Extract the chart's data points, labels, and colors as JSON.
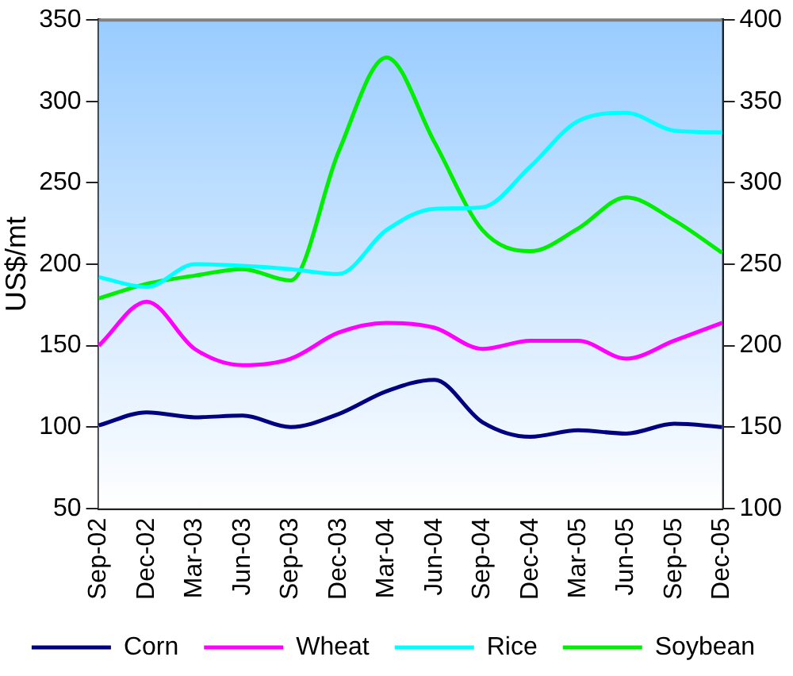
{
  "chart_data": {
    "type": "line",
    "ylabel": "US$/mt",
    "categories": [
      "Sep-02",
      "Dec-02",
      "Mar-03",
      "Jun-03",
      "Sep-03",
      "Dec-03",
      "Mar-04",
      "Jun-04",
      "Sep-04",
      "Dec-04",
      "Mar-05",
      "Jun-05",
      "Sep-05",
      "Dec-05"
    ],
    "series": [
      {
        "name": "Corn",
        "color": "#000080",
        "values": [
          101,
          109,
          106,
          107,
          100,
          108,
          122,
          129,
          103,
          94,
          98,
          96,
          102,
          100
        ]
      },
      {
        "name": "Wheat",
        "color": "#ff00ff",
        "values": [
          150,
          177,
          148,
          138,
          142,
          158,
          164,
          161,
          148,
          153,
          153,
          142,
          153,
          164
        ]
      },
      {
        "name": "Rice",
        "color": "#00ffff",
        "values": [
          192,
          186,
          200,
          199,
          197,
          194,
          221,
          234,
          235,
          260,
          288,
          293,
          282,
          281
        ]
      },
      {
        "name": "Soybean",
        "color": "#00ee00",
        "axis": "y2",
        "values": [
          229,
          238,
          243,
          247,
          240,
          319,
          377,
          325,
          271,
          258,
          272,
          291,
          277,
          257
        ]
      }
    ],
    "ylim": [
      50,
      350
    ],
    "yticks": [
      50,
      100,
      150,
      200,
      250,
      300,
      350
    ],
    "y2lim": [
      100,
      400
    ],
    "y2ticks": [
      100,
      150,
      200,
      250,
      300,
      350,
      400
    ],
    "legend": "bottom",
    "marker": "none",
    "line_style": "solid"
  }
}
